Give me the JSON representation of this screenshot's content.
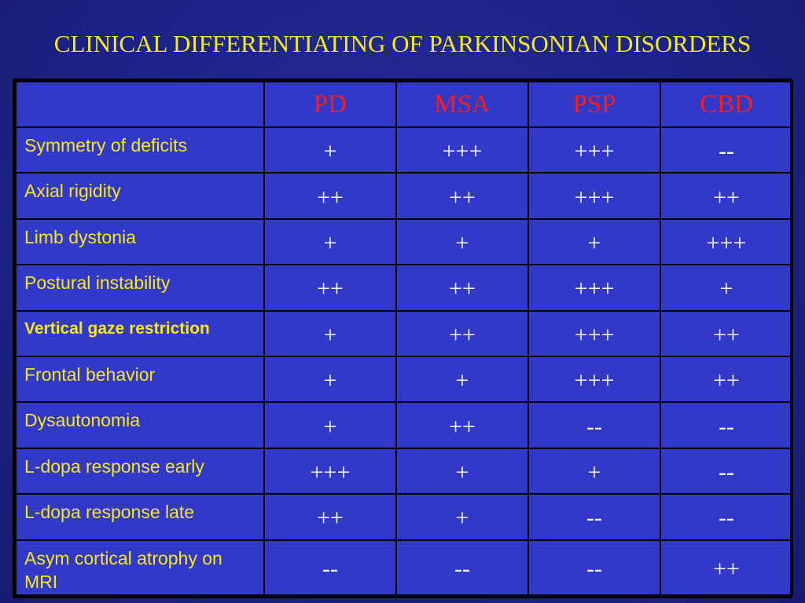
{
  "slide": {
    "title": "CLINICAL DIFFERENTIATING OF PARKINSONIAN DISORDERS"
  },
  "colors": {
    "background": "#1d2488",
    "table_fill": "#3238c8",
    "title": "#f5e91b",
    "column_header": "#ff1a1a",
    "row_label": "#f5e91b",
    "cell_value": "#ffffff"
  },
  "table": {
    "columns": [
      "PD",
      "MSA",
      "PSP",
      "CBD"
    ],
    "rows": [
      {
        "label": "Symmetry of deficits",
        "values": [
          "+",
          "+++",
          "+++",
          "--"
        ]
      },
      {
        "label": "Axial rigidity",
        "values": [
          "++",
          "++",
          "+++",
          "++"
        ]
      },
      {
        "label": "Limb dystonia",
        "values": [
          "+",
          "+",
          "+",
          "+++"
        ]
      },
      {
        "label": "Postural instability",
        "values": [
          "++",
          "++",
          "+++",
          "+"
        ]
      },
      {
        "label": "Vertical gaze restriction",
        "values": [
          "+",
          "++",
          "+++",
          "++"
        ]
      },
      {
        "label": "Frontal behavior",
        "values": [
          "+",
          "+",
          "+++",
          "++"
        ]
      },
      {
        "label": "Dysautonomia",
        "values": [
          "+",
          "++",
          "--",
          "--"
        ]
      },
      {
        "label": "L-dopa response early",
        "values": [
          "+++",
          "+",
          "+",
          "--"
        ]
      },
      {
        "label": "L-dopa response late",
        "values": [
          "++",
          "+",
          "--",
          "--"
        ]
      },
      {
        "label": "Asym cortical atrophy on MRI",
        "values": [
          "--",
          "--",
          "--",
          "++"
        ]
      }
    ]
  }
}
